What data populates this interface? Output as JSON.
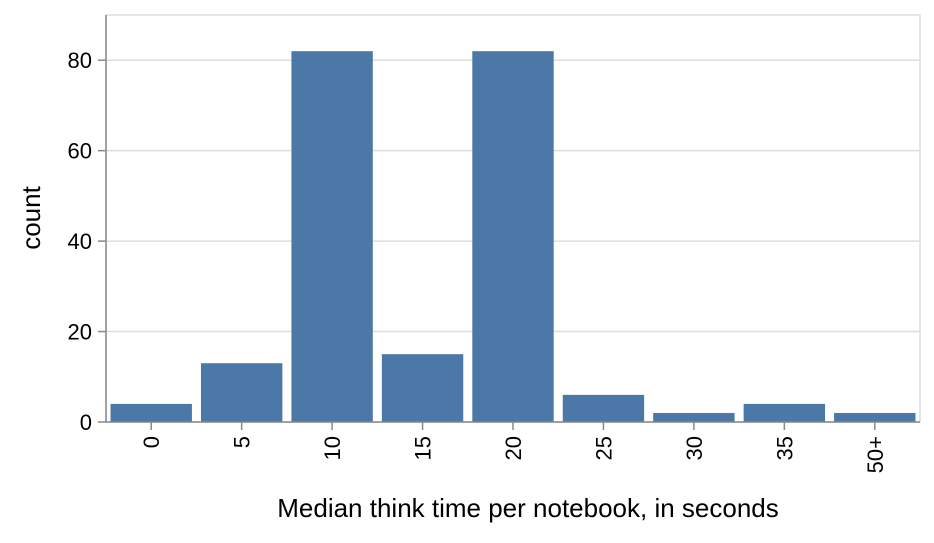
{
  "chart_data": {
    "type": "bar",
    "x_label": "Median think time per notebook, in seconds",
    "y_label": "count",
    "categories": [
      "0",
      "5",
      "10",
      "15",
      "20",
      "25",
      "30",
      "35",
      "50+"
    ],
    "values": [
      4,
      13,
      82,
      15,
      82,
      6,
      2,
      4,
      2
    ],
    "color": "#4c78a8",
    "ylim": [
      0,
      90
    ],
    "yticks": [
      0,
      20,
      40,
      60,
      80
    ],
    "grid": true
  }
}
